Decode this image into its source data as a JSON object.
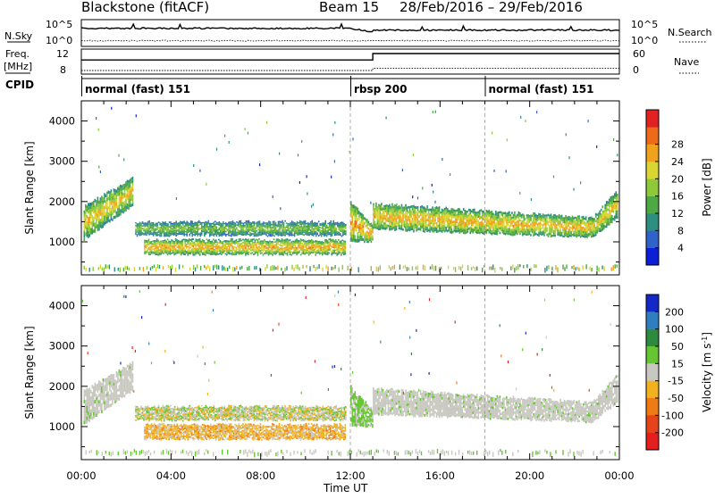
{
  "header": {
    "station": "Blackstone (fitACF)",
    "beam": "Beam 15",
    "date_range": "28/Feb/2016 – 29/Feb/2016"
  },
  "time_axis": {
    "label": "Time UT",
    "ticks": [
      "00:00",
      "04:00",
      "08:00",
      "12:00",
      "16:00",
      "20:00",
      "00:00"
    ]
  },
  "summary_panels": {
    "left_labels": {
      "nsky": "N.Sky",
      "freq_top": "Freq.",
      "freq_unit": "[MHz]",
      "cpid": "CPID"
    },
    "right_labels": {
      "nsearch": "N.Search",
      "nave": "Nave"
    },
    "nsky_ticks": [
      "10^5",
      "10^0"
    ],
    "nsearch_ticks": [
      "10^5",
      "10^0"
    ],
    "freq_ticks": [
      "12",
      "8"
    ],
    "nave_ticks": [
      "60",
      "0"
    ],
    "freq_mhz": [
      {
        "t": 0,
        "v": 10.3
      },
      {
        "t": 13,
        "v": 10.3
      },
      {
        "t": 13,
        "v": 11.5
      },
      {
        "t": 24,
        "v": 11.5
      }
    ],
    "nave": [
      {
        "t": 0,
        "v": 5
      },
      {
        "t": 13,
        "v": 5
      },
      {
        "t": 13,
        "v": 11
      },
      {
        "t": 24,
        "v": 11
      }
    ],
    "cpid_segments": [
      {
        "label": "normal (fast) 151",
        "start": 0,
        "end": 12
      },
      {
        "label": "rbsp 200",
        "start": 12,
        "end": 18
      },
      {
        "label": "normal (fast) 151",
        "start": 18,
        "end": 24
      }
    ]
  },
  "chart_data": [
    {
      "type": "heatmap",
      "title": "Power",
      "xlabel": "Time UT",
      "ylabel": "Slant Range [km]",
      "xlim": [
        0,
        24
      ],
      "ylim": [
        180,
        4500
      ],
      "yticks": [
        1000,
        2000,
        3000,
        4000
      ],
      "colorbar": {
        "label": "Power [dB]",
        "ticks": [
          4,
          8,
          12,
          16,
          20,
          24,
          28
        ],
        "colors": [
          "#0b1fd6",
          "#2f63c9",
          "#2e8e7f",
          "#4ea843",
          "#8fc93a",
          "#d9d634",
          "#f1a21c",
          "#ee6a1a",
          "#e22222"
        ]
      },
      "echo_bands": [
        {
          "t0": 0.1,
          "t1": 2.3,
          "lo0": 1050,
          "lo1": 1900,
          "hi0": 1900,
          "hi1": 2600,
          "level": 0.65
        },
        {
          "t0": 2.4,
          "t1": 11.8,
          "lo0": 1150,
          "lo1": 1150,
          "hi0": 1500,
          "hi1": 1500,
          "level": 0.45
        },
        {
          "t0": 2.8,
          "t1": 11.8,
          "lo0": 680,
          "lo1": 680,
          "hi0": 1050,
          "hi1": 1050,
          "level": 0.72
        },
        {
          "t0": 12.0,
          "t1": 13.0,
          "lo0": 1000,
          "lo1": 1000,
          "hi0": 2000,
          "hi1": 1400,
          "level": 0.75
        },
        {
          "t0": 13.0,
          "t1": 22.8,
          "lo0": 1300,
          "lo1": 1100,
          "hi0": 1950,
          "hi1": 1600,
          "level": 0.7
        },
        {
          "t0": 22.8,
          "t1": 23.9,
          "lo0": 1100,
          "lo1": 1600,
          "hi0": 1600,
          "hi1": 2300,
          "level": 0.65
        }
      ]
    },
    {
      "type": "heatmap",
      "title": "Velocity",
      "xlabel": "Time UT",
      "ylabel": "Slant Range [km]",
      "xlim": [
        0,
        24
      ],
      "ylim": [
        180,
        4500
      ],
      "yticks": [
        1000,
        2000,
        3000,
        4000
      ],
      "colorbar": {
        "label": "Velocity [m s^-1]",
        "ticks": [
          200,
          100,
          50,
          15,
          -15,
          -50,
          -100,
          -200
        ],
        "colors": [
          "#1428c8",
          "#2f7fc0",
          "#2d8a3e",
          "#66c533",
          "#c8c8c0",
          "#f2b21f",
          "#ef7b14",
          "#e5431a",
          "#e51e1e"
        ]
      },
      "echo_bands": [
        {
          "t0": 0.1,
          "t1": 2.3,
          "lo0": 1050,
          "lo1": 1900,
          "hi0": 1900,
          "hi1": 2600,
          "kind": "gray"
        },
        {
          "t0": 2.4,
          "t1": 11.8,
          "lo0": 1150,
          "lo1": 1150,
          "hi0": 1500,
          "hi1": 1500,
          "kind": "mixed"
        },
        {
          "t0": 2.8,
          "t1": 11.8,
          "lo0": 680,
          "lo1": 680,
          "hi0": 1050,
          "hi1": 1050,
          "kind": "orange"
        },
        {
          "t0": 12.0,
          "t1": 13.0,
          "lo0": 1000,
          "lo1": 1000,
          "hi0": 2000,
          "hi1": 1400,
          "kind": "green"
        },
        {
          "t0": 13.0,
          "t1": 22.8,
          "lo0": 1300,
          "lo1": 1100,
          "hi0": 1950,
          "hi1": 1600,
          "kind": "gray"
        },
        {
          "t0": 22.8,
          "t1": 23.9,
          "lo0": 1100,
          "lo1": 1600,
          "hi0": 1600,
          "hi1": 2300,
          "kind": "gray"
        }
      ]
    }
  ]
}
